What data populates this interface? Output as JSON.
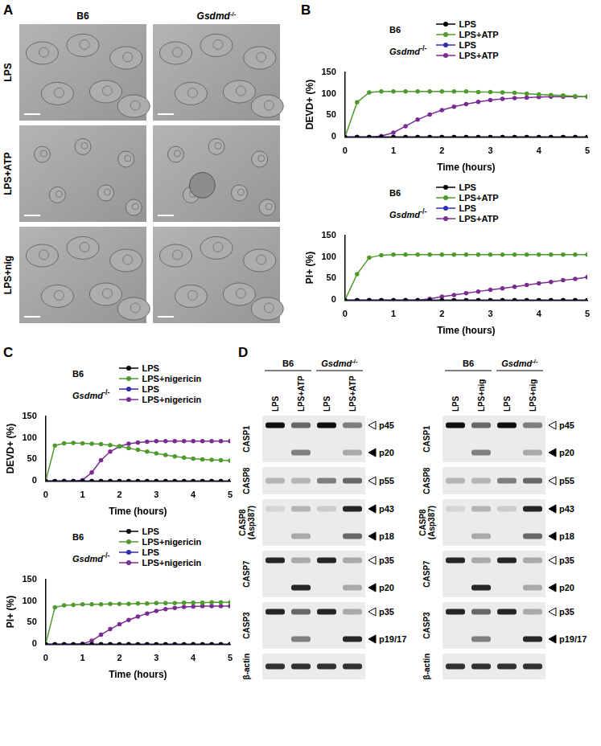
{
  "panel_labels": [
    "A",
    "B",
    "C",
    "D"
  ],
  "panel_a": {
    "columns": [
      "B6",
      "Gsdmd-/-"
    ],
    "rows": [
      "LPS",
      "LPS+ATP",
      "LPS+nig"
    ]
  },
  "chart_data": [
    {
      "type": "line",
      "x": [
        0,
        0.25,
        0.5,
        0.75,
        1,
        1.25,
        1.5,
        1.75,
        2,
        2.25,
        2.5,
        2.75,
        3,
        3.25,
        3.5,
        3.75,
        4,
        4.25,
        4.5,
        4.75,
        5
      ],
      "xlim": [
        0,
        5
      ],
      "xticks": [
        0,
        1,
        2,
        3,
        4,
        5
      ],
      "ylim": [
        0,
        150
      ],
      "yticks": [
        0,
        50,
        100,
        150
      ],
      "x_label": "Time (hours)",
      "y_label": "DEVD+ (%)",
      "grid": false,
      "series": [
        {
          "name": "LPS",
          "group": "B6",
          "color": "#000000",
          "marker": "circle",
          "line_style": "solid",
          "values": [
            0,
            0,
            0,
            0,
            0,
            0,
            0,
            0,
            0,
            0,
            0,
            0,
            0,
            0,
            0,
            0,
            0,
            0,
            0,
            0,
            0
          ]
        },
        {
          "name": "LPS+ATP",
          "group": "B6",
          "color": "#4f9a2c",
          "marker": "circle",
          "line_style": "solid",
          "values": [
            0,
            80,
            103,
            105,
            105,
            105,
            105,
            105,
            105,
            105,
            105,
            104,
            104,
            103,
            102,
            100,
            98,
            97,
            96,
            94,
            93
          ]
        },
        {
          "name": "LPS",
          "group": "Gsdmd-/-",
          "color": "#2e2eb0",
          "marker": "circle",
          "line_style": "solid",
          "values": [
            0,
            0,
            0,
            0,
            0,
            0,
            0,
            0,
            0,
            0,
            0,
            0,
            0,
            0,
            0,
            0,
            0,
            0,
            0,
            0,
            0
          ]
        },
        {
          "name": "LPS+ATP",
          "group": "Gsdmd-/-",
          "color": "#7a2c90",
          "marker": "circle",
          "line_style": "solid",
          "values": [
            0,
            0,
            0,
            2,
            10,
            25,
            40,
            52,
            62,
            70,
            76,
            81,
            85,
            88,
            90,
            91,
            92,
            93,
            93,
            93,
            93
          ]
        }
      ]
    },
    {
      "type": "line",
      "x": [
        0,
        0.25,
        0.5,
        0.75,
        1,
        1.25,
        1.5,
        1.75,
        2,
        2.25,
        2.5,
        2.75,
        3,
        3.25,
        3.5,
        3.75,
        4,
        4.25,
        4.5,
        4.75,
        5
      ],
      "xlim": [
        0,
        5
      ],
      "xticks": [
        0,
        1,
        2,
        3,
        4,
        5
      ],
      "ylim": [
        0,
        150
      ],
      "yticks": [
        0,
        50,
        100,
        150
      ],
      "x_label": "Time (hours)",
      "y_label": "PI+ (%)",
      "grid": false,
      "series": [
        {
          "name": "LPS",
          "group": "B6",
          "color": "#000000",
          "marker": "circle",
          "line_style": "solid",
          "values": [
            0,
            0,
            0,
            0,
            0,
            0,
            0,
            0,
            0,
            0,
            0,
            0,
            0,
            0,
            0,
            0,
            0,
            0,
            0,
            0,
            0
          ]
        },
        {
          "name": "LPS+ATP",
          "group": "B6",
          "color": "#4f9a2c",
          "marker": "circle",
          "line_style": "solid",
          "values": [
            0,
            60,
            98,
            104,
            105,
            105,
            105,
            105,
            105,
            105,
            105,
            105,
            105,
            105,
            105,
            105,
            105,
            105,
            105,
            105,
            105
          ]
        },
        {
          "name": "LPS",
          "group": "Gsdmd-/-",
          "color": "#2e2eb0",
          "marker": "circle",
          "line_style": "solid",
          "values": [
            0,
            0,
            0,
            0,
            0,
            0,
            0,
            0,
            0,
            0,
            0,
            0,
            0,
            0,
            0,
            0,
            0,
            0,
            0,
            0,
            0
          ]
        },
        {
          "name": "LPS+ATP",
          "group": "Gsdmd-/-",
          "color": "#7a2c90",
          "marker": "circle",
          "line_style": "solid",
          "values": [
            0,
            0,
            0,
            0,
            0,
            0,
            0,
            3,
            8,
            12,
            16,
            20,
            24,
            27,
            31,
            35,
            39,
            42,
            46,
            49,
            53
          ]
        }
      ]
    },
    {
      "type": "line",
      "x": [
        0,
        0.25,
        0.5,
        0.75,
        1,
        1.25,
        1.5,
        1.75,
        2,
        2.25,
        2.5,
        2.75,
        3,
        3.25,
        3.5,
        3.75,
        4,
        4.25,
        4.5,
        4.75,
        5
      ],
      "xlim": [
        0,
        5
      ],
      "xticks": [
        0,
        1,
        2,
        3,
        4,
        5
      ],
      "ylim": [
        0,
        150
      ],
      "yticks": [
        0,
        50,
        100,
        150
      ],
      "x_label": "Time (hours)",
      "y_label": "DEVD+ (%)",
      "grid": false,
      "series": [
        {
          "name": "LPS",
          "group": "B6",
          "color": "#000000",
          "marker": "circle",
          "line_style": "solid",
          "values": [
            0,
            0,
            0,
            0,
            0,
            0,
            0,
            0,
            0,
            0,
            0,
            0,
            0,
            0,
            0,
            0,
            0,
            0,
            0,
            0,
            0
          ]
        },
        {
          "name": "LPS+nigericin",
          "group": "B6",
          "color": "#4f9a2c",
          "marker": "circle",
          "line_style": "solid",
          "values": [
            0,
            82,
            87,
            88,
            87,
            86,
            85,
            83,
            80,
            76,
            72,
            68,
            64,
            60,
            57,
            54,
            52,
            50,
            49,
            48,
            47
          ]
        },
        {
          "name": "LPS",
          "group": "Gsdmd-/-",
          "color": "#2e2eb0",
          "marker": "circle",
          "line_style": "solid",
          "values": [
            0,
            0,
            0,
            0,
            0,
            0,
            0,
            0,
            0,
            0,
            0,
            0,
            0,
            0,
            0,
            0,
            0,
            0,
            0,
            0,
            0
          ]
        },
        {
          "name": "LPS+nigericin",
          "group": "Gsdmd-/-",
          "color": "#7a2c90",
          "marker": "circle",
          "line_style": "solid",
          "values": [
            0,
            0,
            0,
            0,
            2,
            20,
            48,
            68,
            80,
            86,
            89,
            91,
            92,
            92,
            92,
            92,
            92,
            92,
            92,
            92,
            92
          ]
        }
      ]
    },
    {
      "type": "line",
      "x": [
        0,
        0.25,
        0.5,
        0.75,
        1,
        1.25,
        1.5,
        1.75,
        2,
        2.25,
        2.5,
        2.75,
        3,
        3.25,
        3.5,
        3.75,
        4,
        4.25,
        4.5,
        4.75,
        5
      ],
      "xlim": [
        0,
        5
      ],
      "xticks": [
        0,
        1,
        2,
        3,
        4,
        5
      ],
      "ylim": [
        0,
        150
      ],
      "yticks": [
        0,
        50,
        100,
        150
      ],
      "x_label": "Time (hours)",
      "y_label": "PI+ (%)",
      "grid": false,
      "series": [
        {
          "name": "LPS",
          "group": "B6",
          "color": "#000000",
          "marker": "circle",
          "line_style": "solid",
          "values": [
            0,
            0,
            0,
            0,
            0,
            0,
            0,
            0,
            0,
            0,
            0,
            0,
            0,
            0,
            0,
            0,
            0,
            0,
            0,
            0,
            0
          ]
        },
        {
          "name": "LPS+nigericin",
          "group": "B6",
          "color": "#4f9a2c",
          "marker": "circle",
          "line_style": "solid",
          "values": [
            0,
            85,
            90,
            91,
            92,
            92,
            92,
            93,
            93,
            93,
            94,
            94,
            95,
            95,
            95,
            96,
            96,
            96,
            97,
            97,
            97
          ]
        },
        {
          "name": "LPS",
          "group": "Gsdmd-/-",
          "color": "#2e2eb0",
          "marker": "circle",
          "line_style": "solid",
          "values": [
            0,
            0,
            0,
            0,
            0,
            0,
            0,
            0,
            0,
            0,
            0,
            0,
            0,
            0,
            0,
            0,
            0,
            0,
            0,
            0,
            0
          ]
        },
        {
          "name": "LPS+nigericin",
          "group": "Gsdmd-/-",
          "color": "#7a2c90",
          "marker": "circle",
          "line_style": "solid",
          "values": [
            0,
            0,
            0,
            0,
            1,
            8,
            22,
            35,
            46,
            56,
            64,
            71,
            77,
            81,
            84,
            86,
            87,
            88,
            88,
            88,
            88
          ]
        }
      ]
    }
  ],
  "panel_d": {
    "blots": [
      {
        "groups": [
          "B6",
          "Gsdmd-/-"
        ],
        "lanes": [
          "LPS",
          "LPS+ATP",
          "LPS",
          "LPS+ATP"
        ],
        "rows": [
          {
            "label": "CASP1",
            "bands": [
              {
                "label": "p45",
                "arrow": "open"
              },
              {
                "label": "p20",
                "arrow": "filled"
              }
            ]
          },
          {
            "label": "CASP8",
            "bands": [
              {
                "label": "p55",
                "arrow": "open"
              }
            ]
          },
          {
            "label": "CASP8 (Asp387)",
            "bands": [
              {
                "label": "p43",
                "arrow": "filled"
              },
              {
                "label": "p18",
                "arrow": "filled"
              }
            ]
          },
          {
            "label": "CASP7",
            "bands": [
              {
                "label": "p35",
                "arrow": "open"
              },
              {
                "label": "p20",
                "arrow": "filled"
              }
            ]
          },
          {
            "label": "CASP3",
            "bands": [
              {
                "label": "p35",
                "arrow": "open"
              },
              {
                "label": "p19/17",
                "arrow": "filled"
              }
            ]
          },
          {
            "label": "β-actin",
            "bands": []
          }
        ]
      },
      {
        "groups": [
          "B6",
          "Gsdmd-/-"
        ],
        "lanes": [
          "LPS",
          "LPS+nig",
          "LPS",
          "LPS+nig"
        ],
        "rows": [
          {
            "label": "CASP1",
            "bands": [
              {
                "label": "p45",
                "arrow": "open"
              },
              {
                "label": "p20",
                "arrow": "filled"
              }
            ]
          },
          {
            "label": "CASP8",
            "bands": [
              {
                "label": "p55",
                "arrow": "open"
              }
            ]
          },
          {
            "label": "CASP8 (Asp387)",
            "bands": [
              {
                "label": "p43",
                "arrow": "filled"
              },
              {
                "label": "p18",
                "arrow": "filled"
              }
            ]
          },
          {
            "label": "CASP7",
            "bands": [
              {
                "label": "p35",
                "arrow": "open"
              },
              {
                "label": "p20",
                "arrow": "filled"
              }
            ]
          },
          {
            "label": "CASP3",
            "bands": [
              {
                "label": "p35",
                "arrow": "open"
              },
              {
                "label": "p19/17",
                "arrow": "filled"
              }
            ]
          },
          {
            "label": "β-actin",
            "bands": []
          }
        ]
      }
    ]
  }
}
